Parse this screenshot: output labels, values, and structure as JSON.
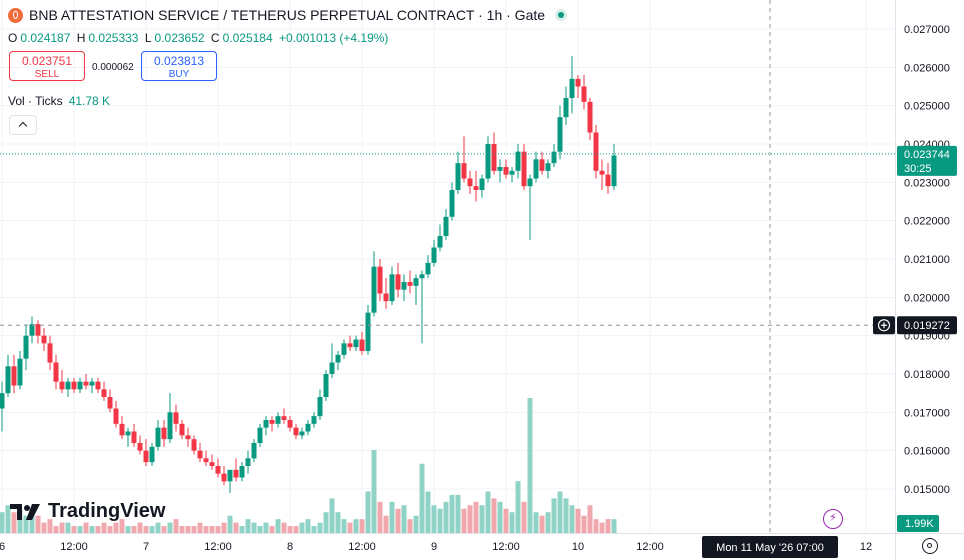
{
  "header": {
    "symbol": "BNB ATTESTATION SERVICE / TETHERUS PERPETUAL CONTRACT · 1h · Gate",
    "open_label": "O",
    "open": "0.024187",
    "high_label": "H",
    "high": "0.025333",
    "low_label": "L",
    "low": "0.023652",
    "close_label": "C",
    "close": "0.025184",
    "change": "+0.001013 (+4.19%)"
  },
  "trade": {
    "sell_price": "0.023751",
    "sell_label": "SELL",
    "spread": "0.000062",
    "buy_price": "0.023813",
    "buy_label": "BUY"
  },
  "volume": {
    "label": "Vol · Ticks",
    "value": "41.78 K",
    "last_label": "1.99K"
  },
  "branding": {
    "logo_text": "TradingView"
  },
  "colors": {
    "up": "#089981",
    "down": "#f23645",
    "up_vol": "#8fd3c6",
    "down_vol": "#f0a8ae"
  },
  "chart_data": {
    "type": "candlestick",
    "interval": "1h",
    "ylim": [
      0.0142,
      0.0276
    ],
    "y_ticks": [
      "0.027000",
      "0.026000",
      "0.025000",
      "0.024000",
      "0.023000",
      "0.022000",
      "0.021000",
      "0.020000",
      "0.019000",
      "0.018000",
      "0.017000",
      "0.016000",
      "0.015000"
    ],
    "x_ticks": [
      {
        "label": "6",
        "i": 0
      },
      {
        "label": "12:00",
        "i": 12
      },
      {
        "label": "7",
        "i": 24
      },
      {
        "label": "12:00",
        "i": 36
      },
      {
        "label": "8",
        "i": 48
      },
      {
        "label": "12:00",
        "i": 60
      },
      {
        "label": "9",
        "i": 72
      },
      {
        "label": "12:00",
        "i": 84
      },
      {
        "label": "10",
        "i": 96
      },
      {
        "label": "12:00",
        "i": 108
      },
      {
        "label": "12",
        "i": 144
      }
    ],
    "last_price": "0.023744",
    "countdown": "30:25",
    "crosshair": {
      "price": "0.019272",
      "time": "Mon 11 May '26   07:00",
      "i": 128
    },
    "candles": [
      [
        0.0171,
        0.0178,
        0.0165,
        0.0175
      ],
      [
        0.0175,
        0.0185,
        0.0174,
        0.0182
      ],
      [
        0.0182,
        0.0185,
        0.0175,
        0.0177
      ],
      [
        0.0177,
        0.0186,
        0.0176,
        0.0184
      ],
      [
        0.0184,
        0.0193,
        0.0181,
        0.019
      ],
      [
        0.019,
        0.0195,
        0.0188,
        0.0193
      ],
      [
        0.0193,
        0.0194,
        0.0188,
        0.019
      ],
      [
        0.019,
        0.0192,
        0.0186,
        0.0188
      ],
      [
        0.0188,
        0.019,
        0.0181,
        0.0183
      ],
      [
        0.0183,
        0.0185,
        0.0176,
        0.0178
      ],
      [
        0.0178,
        0.0181,
        0.0175,
        0.0176
      ],
      [
        0.0176,
        0.0179,
        0.0174,
        0.0178
      ],
      [
        0.0178,
        0.0179,
        0.0175,
        0.0176
      ],
      [
        0.0176,
        0.0179,
        0.0175,
        0.0178
      ],
      [
        0.0178,
        0.018,
        0.0176,
        0.0177
      ],
      [
        0.0177,
        0.0179,
        0.0175,
        0.0178
      ],
      [
        0.0178,
        0.0179,
        0.0175,
        0.0176
      ],
      [
        0.0176,
        0.0178,
        0.0173,
        0.0174
      ],
      [
        0.0174,
        0.0176,
        0.017,
        0.0171
      ],
      [
        0.0171,
        0.0173,
        0.0166,
        0.0167
      ],
      [
        0.0167,
        0.0169,
        0.0163,
        0.0164
      ],
      [
        0.0164,
        0.0166,
        0.0161,
        0.0165
      ],
      [
        0.0165,
        0.0167,
        0.0161,
        0.0162
      ],
      [
        0.0162,
        0.0164,
        0.0159,
        0.016
      ],
      [
        0.016,
        0.0163,
        0.0156,
        0.0157
      ],
      [
        0.0157,
        0.0162,
        0.0156,
        0.0161
      ],
      [
        0.0161,
        0.0168,
        0.016,
        0.0166
      ],
      [
        0.0166,
        0.0168,
        0.0161,
        0.0163
      ],
      [
        0.0163,
        0.0175,
        0.0162,
        0.017
      ],
      [
        0.017,
        0.0172,
        0.0165,
        0.0167
      ],
      [
        0.0167,
        0.0168,
        0.0163,
        0.0164
      ],
      [
        0.0164,
        0.0166,
        0.0161,
        0.0163
      ],
      [
        0.0163,
        0.0164,
        0.0159,
        0.016
      ],
      [
        0.016,
        0.0162,
        0.0157,
        0.0158
      ],
      [
        0.0158,
        0.016,
        0.0156,
        0.0157
      ],
      [
        0.0157,
        0.0159,
        0.0155,
        0.0156
      ],
      [
        0.0156,
        0.0158,
        0.0153,
        0.0154
      ],
      [
        0.0154,
        0.0156,
        0.0151,
        0.0152
      ],
      [
        0.0152,
        0.0155,
        0.0149,
        0.0155
      ],
      [
        0.0155,
        0.0158,
        0.0152,
        0.0153
      ],
      [
        0.0153,
        0.0157,
        0.0152,
        0.0156
      ],
      [
        0.0156,
        0.016,
        0.0154,
        0.0158
      ],
      [
        0.0158,
        0.0163,
        0.0157,
        0.0162
      ],
      [
        0.0162,
        0.0167,
        0.0161,
        0.0166
      ],
      [
        0.0166,
        0.0169,
        0.0164,
        0.0168
      ],
      [
        0.0168,
        0.0169,
        0.0165,
        0.0167
      ],
      [
        0.0167,
        0.017,
        0.0166,
        0.0169
      ],
      [
        0.0169,
        0.0171,
        0.0167,
        0.0168
      ],
      [
        0.0168,
        0.0169,
        0.0165,
        0.0166
      ],
      [
        0.0166,
        0.0167,
        0.0163,
        0.0164
      ],
      [
        0.0164,
        0.0166,
        0.0163,
        0.0165
      ],
      [
        0.0165,
        0.0168,
        0.0164,
        0.0167
      ],
      [
        0.0167,
        0.017,
        0.0166,
        0.0169
      ],
      [
        0.0169,
        0.0176,
        0.0168,
        0.0174
      ],
      [
        0.0174,
        0.0181,
        0.0173,
        0.018
      ],
      [
        0.018,
        0.0188,
        0.0179,
        0.0183
      ],
      [
        0.0183,
        0.0186,
        0.0181,
        0.0185
      ],
      [
        0.0185,
        0.0189,
        0.0184,
        0.0188
      ],
      [
        0.0188,
        0.019,
        0.0186,
        0.0187
      ],
      [
        0.0187,
        0.019,
        0.0186,
        0.0189
      ],
      [
        0.0189,
        0.0191,
        0.0185,
        0.0186
      ],
      [
        0.0186,
        0.0198,
        0.0185,
        0.0196
      ],
      [
        0.0196,
        0.0212,
        0.0195,
        0.0208
      ],
      [
        0.0208,
        0.021,
        0.0199,
        0.0201
      ],
      [
        0.0201,
        0.0205,
        0.0197,
        0.0199
      ],
      [
        0.0199,
        0.0208,
        0.0198,
        0.0206
      ],
      [
        0.0206,
        0.0209,
        0.02,
        0.0202
      ],
      [
        0.0202,
        0.0206,
        0.0199,
        0.0204
      ],
      [
        0.0204,
        0.0207,
        0.0201,
        0.0203
      ],
      [
        0.0203,
        0.0206,
        0.0198,
        0.0205
      ],
      [
        0.0205,
        0.0207,
        0.0188,
        0.0206
      ],
      [
        0.0206,
        0.0211,
        0.0205,
        0.0209
      ],
      [
        0.0209,
        0.0215,
        0.0208,
        0.0213
      ],
      [
        0.0213,
        0.0219,
        0.0212,
        0.0216
      ],
      [
        0.0216,
        0.0223,
        0.0215,
        0.0221
      ],
      [
        0.0221,
        0.023,
        0.022,
        0.0228
      ],
      [
        0.0228,
        0.0238,
        0.0227,
        0.0235
      ],
      [
        0.0235,
        0.0242,
        0.023,
        0.0231
      ],
      [
        0.0231,
        0.0233,
        0.0227,
        0.0229
      ],
      [
        0.0229,
        0.0233,
        0.0225,
        0.0228
      ],
      [
        0.0228,
        0.0232,
        0.0226,
        0.0231
      ],
      [
        0.0231,
        0.0242,
        0.023,
        0.024
      ],
      [
        0.024,
        0.0243,
        0.0232,
        0.0233
      ],
      [
        0.0233,
        0.0236,
        0.023,
        0.0234
      ],
      [
        0.0234,
        0.0236,
        0.0231,
        0.0232
      ],
      [
        0.0232,
        0.0234,
        0.023,
        0.0233
      ],
      [
        0.0233,
        0.024,
        0.0231,
        0.0238
      ],
      [
        0.0238,
        0.024,
        0.0228,
        0.0229
      ],
      [
        0.0229,
        0.0232,
        0.0215,
        0.0231
      ],
      [
        0.0231,
        0.0238,
        0.023,
        0.0236
      ],
      [
        0.0236,
        0.0238,
        0.0232,
        0.0233
      ],
      [
        0.0233,
        0.0236,
        0.0231,
        0.0235
      ],
      [
        0.0235,
        0.024,
        0.0234,
        0.0238
      ],
      [
        0.0238,
        0.025,
        0.0236,
        0.0247
      ],
      [
        0.0247,
        0.0255,
        0.0245,
        0.0252
      ],
      [
        0.0252,
        0.0263,
        0.0248,
        0.0257
      ],
      [
        0.0257,
        0.0258,
        0.0252,
        0.0255
      ],
      [
        0.0255,
        0.0258,
        0.0249,
        0.0251
      ],
      [
        0.0251,
        0.0252,
        0.0241,
        0.0243
      ],
      [
        0.0243,
        0.0245,
        0.0231,
        0.0233
      ],
      [
        0.0233,
        0.0236,
        0.0228,
        0.0232
      ],
      [
        0.0232,
        0.0235,
        0.0227,
        0.0229
      ],
      [
        0.0229,
        0.024,
        0.0228,
        0.0237
      ]
    ],
    "volumes": [
      0.6,
      0.8,
      0.6,
      0.7,
      0.5,
      0.6,
      0.5,
      0.3,
      0.4,
      0.2,
      0.3,
      0.3,
      0.2,
      0.2,
      0.3,
      0.2,
      0.2,
      0.3,
      0.2,
      0.3,
      0.4,
      0.2,
      0.2,
      0.3,
      0.2,
      0.2,
      0.3,
      0.2,
      0.3,
      0.4,
      0.2,
      0.2,
      0.2,
      0.3,
      0.2,
      0.2,
      0.2,
      0.3,
      0.5,
      0.3,
      0.2,
      0.4,
      0.3,
      0.2,
      0.3,
      0.2,
      0.4,
      0.3,
      0.2,
      0.2,
      0.3,
      0.4,
      0.2,
      0.3,
      0.6,
      1.0,
      0.6,
      0.4,
      0.3,
      0.4,
      0.4,
      1.2,
      2.4,
      0.9,
      0.5,
      0.9,
      0.7,
      0.8,
      0.4,
      0.5,
      2.0,
      1.2,
      0.8,
      0.7,
      0.9,
      1.1,
      1.1,
      0.7,
      0.8,
      0.9,
      0.8,
      1.2,
      1.0,
      0.9,
      0.7,
      0.6,
      1.5,
      0.9,
      3.9,
      0.6,
      0.5,
      0.6,
      1.0,
      1.2,
      1.0,
      0.8,
      0.7,
      0.5,
      0.8,
      0.4,
      0.3,
      0.4,
      0.4
    ]
  }
}
